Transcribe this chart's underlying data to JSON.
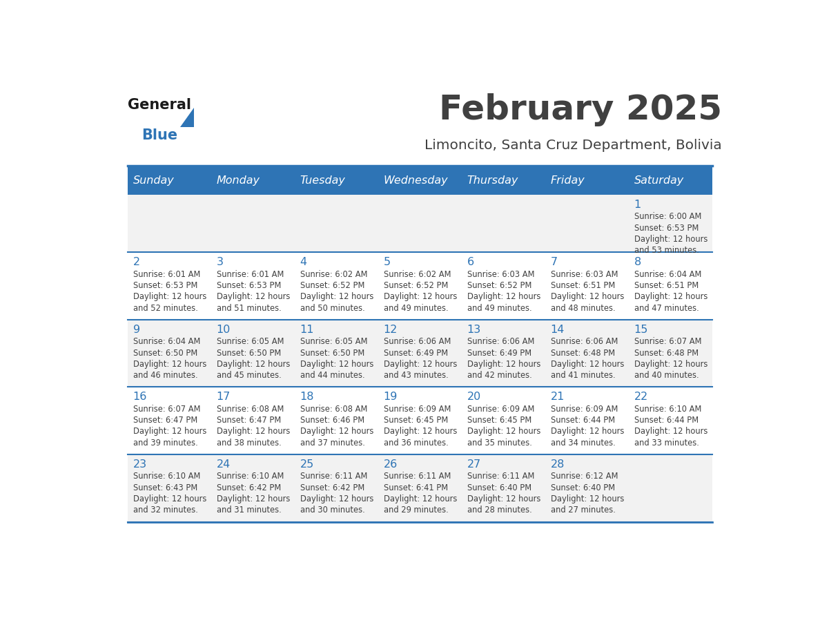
{
  "title": "February 2025",
  "subtitle": "Limoncito, Santa Cruz Department, Bolivia",
  "days_of_week": [
    "Sunday",
    "Monday",
    "Tuesday",
    "Wednesday",
    "Thursday",
    "Friday",
    "Saturday"
  ],
  "header_bg": "#2E74B5",
  "header_text": "#FFFFFF",
  "row_bg_even": "#F2F2F2",
  "row_bg_odd": "#FFFFFF",
  "day_number_color": "#2E74B5",
  "cell_text_color": "#404040",
  "divider_color": "#2E74B5",
  "title_color": "#404040",
  "subtitle_color": "#404040",
  "calendar": [
    [
      null,
      null,
      null,
      null,
      null,
      null,
      {
        "day": 1,
        "sunrise": "6:00 AM",
        "sunset": "6:53 PM",
        "daylight_suffix": "53 minutes."
      }
    ],
    [
      {
        "day": 2,
        "sunrise": "6:01 AM",
        "sunset": "6:53 PM",
        "daylight_suffix": "52 minutes."
      },
      {
        "day": 3,
        "sunrise": "6:01 AM",
        "sunset": "6:53 PM",
        "daylight_suffix": "51 minutes."
      },
      {
        "day": 4,
        "sunrise": "6:02 AM",
        "sunset": "6:52 PM",
        "daylight_suffix": "50 minutes."
      },
      {
        "day": 5,
        "sunrise": "6:02 AM",
        "sunset": "6:52 PM",
        "daylight_suffix": "49 minutes."
      },
      {
        "day": 6,
        "sunrise": "6:03 AM",
        "sunset": "6:52 PM",
        "daylight_suffix": "49 minutes."
      },
      {
        "day": 7,
        "sunrise": "6:03 AM",
        "sunset": "6:51 PM",
        "daylight_suffix": "48 minutes."
      },
      {
        "day": 8,
        "sunrise": "6:04 AM",
        "sunset": "6:51 PM",
        "daylight_suffix": "47 minutes."
      }
    ],
    [
      {
        "day": 9,
        "sunrise": "6:04 AM",
        "sunset": "6:50 PM",
        "daylight_suffix": "46 minutes."
      },
      {
        "day": 10,
        "sunrise": "6:05 AM",
        "sunset": "6:50 PM",
        "daylight_suffix": "45 minutes."
      },
      {
        "day": 11,
        "sunrise": "6:05 AM",
        "sunset": "6:50 PM",
        "daylight_suffix": "44 minutes."
      },
      {
        "day": 12,
        "sunrise": "6:06 AM",
        "sunset": "6:49 PM",
        "daylight_suffix": "43 minutes."
      },
      {
        "day": 13,
        "sunrise": "6:06 AM",
        "sunset": "6:49 PM",
        "daylight_suffix": "42 minutes."
      },
      {
        "day": 14,
        "sunrise": "6:06 AM",
        "sunset": "6:48 PM",
        "daylight_suffix": "41 minutes."
      },
      {
        "day": 15,
        "sunrise": "6:07 AM",
        "sunset": "6:48 PM",
        "daylight_suffix": "40 minutes."
      }
    ],
    [
      {
        "day": 16,
        "sunrise": "6:07 AM",
        "sunset": "6:47 PM",
        "daylight_suffix": "39 minutes."
      },
      {
        "day": 17,
        "sunrise": "6:08 AM",
        "sunset": "6:47 PM",
        "daylight_suffix": "38 minutes."
      },
      {
        "day": 18,
        "sunrise": "6:08 AM",
        "sunset": "6:46 PM",
        "daylight_suffix": "37 minutes."
      },
      {
        "day": 19,
        "sunrise": "6:09 AM",
        "sunset": "6:45 PM",
        "daylight_suffix": "36 minutes."
      },
      {
        "day": 20,
        "sunrise": "6:09 AM",
        "sunset": "6:45 PM",
        "daylight_suffix": "35 minutes."
      },
      {
        "day": 21,
        "sunrise": "6:09 AM",
        "sunset": "6:44 PM",
        "daylight_suffix": "34 minutes."
      },
      {
        "day": 22,
        "sunrise": "6:10 AM",
        "sunset": "6:44 PM",
        "daylight_suffix": "33 minutes."
      }
    ],
    [
      {
        "day": 23,
        "sunrise": "6:10 AM",
        "sunset": "6:43 PM",
        "daylight_suffix": "32 minutes."
      },
      {
        "day": 24,
        "sunrise": "6:10 AM",
        "sunset": "6:42 PM",
        "daylight_suffix": "31 minutes."
      },
      {
        "day": 25,
        "sunrise": "6:11 AM",
        "sunset": "6:42 PM",
        "daylight_suffix": "30 minutes."
      },
      {
        "day": 26,
        "sunrise": "6:11 AM",
        "sunset": "6:41 PM",
        "daylight_suffix": "29 minutes."
      },
      {
        "day": 27,
        "sunrise": "6:11 AM",
        "sunset": "6:40 PM",
        "daylight_suffix": "28 minutes."
      },
      {
        "day": 28,
        "sunrise": "6:12 AM",
        "sunset": "6:40 PM",
        "daylight_suffix": "27 minutes."
      },
      null
    ]
  ]
}
